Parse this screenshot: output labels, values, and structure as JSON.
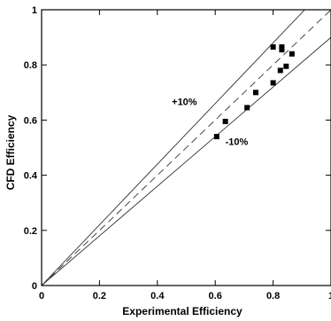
{
  "chart_data": {
    "type": "scatter",
    "title": "",
    "xlabel": "Experimental Efficiency",
    "ylabel": "CFD Efficiency",
    "xlim": [
      0,
      1
    ],
    "ylim": [
      0,
      1
    ],
    "grid": false,
    "xticks": [
      0,
      0.2,
      0.4,
      0.6,
      0.8,
      1
    ],
    "yticks": [
      0,
      0.2,
      0.4,
      0.6,
      0.8,
      1
    ],
    "xtick_labels": [
      "0",
      "0.2",
      "0.4",
      "0.6",
      "0.8",
      "1"
    ],
    "ytick_labels": [
      "0",
      "0.2",
      "0.4",
      "0.6",
      "0.8",
      "1"
    ],
    "points": [
      {
        "x": 0.605,
        "y": 0.54
      },
      {
        "x": 0.635,
        "y": 0.595
      },
      {
        "x": 0.71,
        "y": 0.645
      },
      {
        "x": 0.74,
        "y": 0.7
      },
      {
        "x": 0.8,
        "y": 0.735
      },
      {
        "x": 0.8,
        "y": 0.865
      },
      {
        "x": 0.825,
        "y": 0.78
      },
      {
        "x": 0.83,
        "y": 0.865
      },
      {
        "x": 0.83,
        "y": 0.855
      },
      {
        "x": 0.845,
        "y": 0.795
      },
      {
        "x": 0.865,
        "y": 0.84
      }
    ],
    "reference_lines": [
      {
        "slope": 1.0,
        "style": "dashed"
      },
      {
        "slope": 1.1,
        "style": "solid"
      },
      {
        "slope": 0.9,
        "style": "solid"
      }
    ],
    "annotations": [
      {
        "text": "+10%",
        "x": 0.45,
        "y": 0.655
      },
      {
        "text": "-10%",
        "x": 0.635,
        "y": 0.51
      }
    ]
  }
}
